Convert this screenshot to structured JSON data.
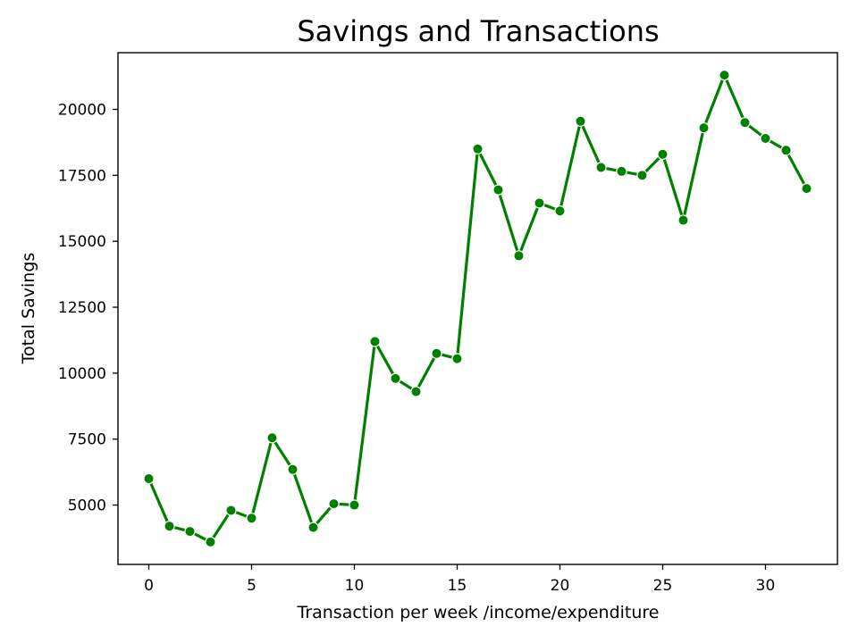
{
  "chart_data": {
    "type": "line",
    "title": "Savings and Transactions",
    "xlabel": "Transaction per week /income/expenditure",
    "ylabel": "Total Savings",
    "xlim": [
      -1.5,
      33.5
    ],
    "ylim": [
      2750,
      22150
    ],
    "xticks": [
      0,
      5,
      10,
      15,
      20,
      25,
      30
    ],
    "yticks": [
      5000,
      7500,
      10000,
      12500,
      15000,
      17500,
      20000
    ],
    "grid": false,
    "color": "#008000",
    "series": [
      {
        "x": [
          0,
          1,
          2,
          3,
          4,
          5,
          6,
          7,
          8,
          9,
          10,
          11,
          12,
          13,
          14,
          15,
          16,
          17,
          18,
          19,
          20,
          21,
          22,
          23,
          24,
          25,
          26,
          27,
          28,
          29,
          30,
          31,
          32
        ],
        "values": [
          6000,
          4200,
          4000,
          3600,
          4800,
          4500,
          7550,
          6350,
          4150,
          5050,
          5000,
          11200,
          9800,
          9300,
          10750,
          10550,
          18500,
          16950,
          14450,
          16450,
          16150,
          19550,
          17800,
          17650,
          17500,
          18300,
          15800,
          19300,
          21300,
          19500,
          18900,
          18450,
          17000
        ]
      }
    ]
  }
}
